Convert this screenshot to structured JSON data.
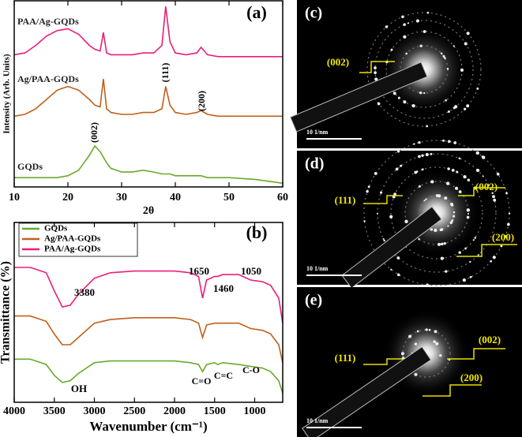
{
  "chart_data": [
    {
      "type": "line",
      "ylabel": "Intensity (Arb. Units)",
      "xlabel": "2θ",
      "x": [
        10,
        12,
        14,
        16,
        18,
        20,
        22,
        24,
        25,
        26,
        26.6,
        27.2,
        28,
        30,
        32,
        34,
        36,
        37.5,
        38.2,
        39,
        40,
        42,
        44,
        44.8,
        46,
        48,
        50,
        55,
        60
      ],
      "xlim": [
        10,
        60
      ],
      "xticks": [
        10,
        20,
        30,
        40,
        50,
        60
      ],
      "ylim": [
        0,
        100
      ],
      "series": [
        {
          "name": "GQDs",
          "color": "#6aaa2a",
          "values": [
            5,
            5,
            5,
            5,
            5,
            6,
            9,
            17,
            22,
            19,
            16,
            13,
            10,
            8,
            8,
            9,
            8,
            7,
            7,
            7,
            6,
            6,
            6,
            6,
            5,
            5,
            5,
            4,
            2
          ]
        },
        {
          "name": "Ag/PAA-GQDs",
          "color": "#c0601a",
          "values": [
            38,
            39,
            42,
            47,
            52,
            54,
            52,
            47,
            44,
            43,
            58,
            42,
            40,
            39,
            39,
            40,
            40,
            42,
            54,
            44,
            40,
            39,
            40,
            41,
            39,
            38,
            38,
            38,
            38
          ]
        },
        {
          "name": "PAA/Ag-GQDs",
          "color": "#e8207a",
          "values": [
            71,
            72,
            76,
            81,
            84,
            85,
            82,
            76,
            74,
            73,
            83,
            72,
            71,
            71,
            71,
            72,
            72,
            76,
            97,
            78,
            72,
            71,
            72,
            75,
            71,
            70,
            70,
            70,
            70
          ]
        }
      ],
      "annotations": [
        "(a)",
        "(002)",
        "(111)",
        "(200)"
      ]
    },
    {
      "type": "line",
      "ylabel": "Transmittance (%)",
      "xlabel": "Wavenumber (cm⁻¹)",
      "x": [
        4000,
        3800,
        3600,
        3500,
        3400,
        3300,
        3200,
        3000,
        2800,
        2500,
        2000,
        1800,
        1700,
        1650,
        1600,
        1500,
        1460,
        1400,
        1200,
        1050,
        900,
        800,
        700,
        650
      ],
      "xlim": [
        4000,
        650
      ],
      "xticks": [
        4000,
        3500,
        3000,
        2500,
        2000,
        1500,
        1000
      ],
      "ylim": [
        0,
        100
      ],
      "series": [
        {
          "name": "GQDs",
          "color": "#6aaa2a",
          "values": [
            24,
            24,
            21,
            15,
            11,
            12,
            16,
            22,
            23,
            23,
            23,
            22,
            21,
            17,
            21,
            22,
            21,
            22,
            21,
            20,
            19,
            17,
            12,
            5
          ]
        },
        {
          "name": "Ag/PAA-GQDs",
          "color": "#c0601a",
          "values": [
            48,
            48,
            45,
            38,
            32,
            32,
            36,
            44,
            46,
            47,
            47,
            46,
            44,
            36,
            43,
            44,
            44,
            44,
            44,
            41,
            40,
            38,
            32,
            22
          ]
        },
        {
          "name": "PAA/Ag-GQDs",
          "color": "#e8207a",
          "values": [
            75,
            75,
            72,
            62,
            53,
            54,
            60,
            69,
            72,
            73,
            73,
            72,
            70,
            58,
            68,
            70,
            70,
            71,
            71,
            68,
            67,
            65,
            58,
            44
          ]
        }
      ],
      "annotations": [
        "(b)",
        "3380",
        "1650",
        "1460",
        "1050",
        "OH",
        "C=O",
        "C=C",
        "C-O"
      ]
    }
  ],
  "images": [
    {
      "label": "(c)",
      "planes": [
        "(002)"
      ],
      "scale": "10 1/nm"
    },
    {
      "label": "(d)",
      "planes": [
        "(111)",
        "(002)",
        "(200)"
      ],
      "scale": "10 1/nm"
    },
    {
      "label": "(e)",
      "planes": [
        "(111)",
        "(002)",
        "(200)"
      ],
      "scale": "10 1/nm"
    }
  ]
}
